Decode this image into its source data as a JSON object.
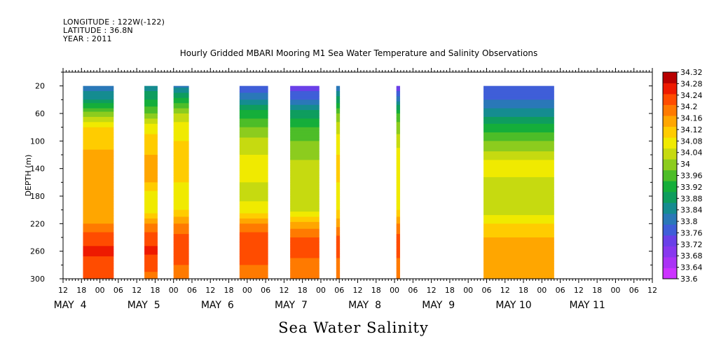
{
  "header": {
    "longitude": "LONGITUDE : 122W(-122)",
    "latitude": "LATITUDE : 36.8N",
    "year": "YEAR : 2011"
  },
  "caption": "Sea Water Salinity",
  "chart_data": {
    "type": "heatmap",
    "title": "Hourly Gridded MBARI Mooring M1 Sea Water Temperature and Salinity Observations",
    "xlabel": "",
    "ylabel": "DEPTH (m)",
    "x_hours": {
      "start": "MAY 3 12:00",
      "end": "MAY 11 12:00"
    },
    "xlim_hours": [
      0,
      192
    ],
    "ylim": [
      300,
      0
    ],
    "y_ticks": [
      20,
      60,
      100,
      140,
      180,
      220,
      260,
      300
    ],
    "x_hour_ticks": [
      "12",
      "18",
      "00",
      "06",
      "12",
      "18",
      "00",
      "06",
      "12",
      "18",
      "00",
      "06",
      "12",
      "18",
      "00",
      "06",
      "12",
      "18",
      "00",
      "06",
      "12",
      "18",
      "00",
      "06",
      "12",
      "18",
      "00",
      "06",
      "12",
      "18",
      "00",
      "06",
      "12"
    ],
    "day_labels": [
      "MAY  4",
      "MAY  5",
      "MAY  6",
      "MAY  7",
      "MAY  8",
      "MAY  9",
      "MAY 10",
      "MAY 11"
    ],
    "colorbar": {
      "levels": [
        33.6,
        33.64,
        33.68,
        33.72,
        33.76,
        33.8,
        33.84,
        33.88,
        33.92,
        33.96,
        34,
        34.04,
        34.08,
        34.12,
        34.16,
        34.2,
        34.24,
        34.28,
        34.32
      ],
      "labels": [
        "33.6",
        "33.64",
        "33.68",
        "33.72",
        "33.76",
        "33.8",
        "33.84",
        "33.88",
        "33.92",
        "33.96",
        "34",
        "34.04",
        "34.08",
        "34.12",
        "34.16",
        "34.2",
        "34.24",
        "34.28",
        "34.32"
      ],
      "colors": [
        "#cc33ff",
        "#aa33f5",
        "#8838ee",
        "#6a40e8",
        "#3f5ed8",
        "#2a78b8",
        "#158c90",
        "#0e9d5e",
        "#15ae3a",
        "#4dbd28",
        "#8ccc1e",
        "#c6da10",
        "#f0ea00",
        "#ffcc00",
        "#ffa600",
        "#ff7a00",
        "#ff4c00",
        "#ee1a00",
        "#b80000"
      ]
    },
    "depths": [
      20,
      40,
      60,
      80,
      100,
      120,
      140,
      160,
      180,
      200,
      220,
      240,
      260,
      280,
      300
    ],
    "segments": [
      {
        "x0": 6.5,
        "x1": 16.5,
        "profile": [
          33.82,
          33.88,
          34.02,
          34.12,
          34.14,
          34.17,
          34.2,
          34.19,
          34.17,
          34.17,
          34.2,
          34.26,
          34.29,
          34.26,
          34.24
        ]
      },
      {
        "x0": 26.5,
        "x1": 30.8,
        "profile": [
          33.85,
          33.92,
          34.0,
          34.1,
          34.14,
          34.16,
          34.18,
          34.16,
          34.1,
          34.1,
          34.2,
          34.26,
          34.29,
          34.25,
          34.23
        ]
      },
      {
        "x0": 36,
        "x1": 41,
        "profile": [
          33.82,
          33.94,
          34.04,
          34.1,
          34.12,
          34.15,
          34.16,
          34.12,
          34.1,
          34.12,
          34.2,
          34.25,
          34.28,
          34.24,
          34.22
        ]
      },
      {
        "x0": 57.5,
        "x1": 66.8,
        "profile": [
          33.76,
          33.84,
          33.94,
          34.0,
          34.05,
          34.08,
          34.12,
          34.08,
          34.07,
          34.1,
          34.2,
          34.26,
          34.28,
          34.24,
          34.22
        ]
      },
      {
        "x0": 74,
        "x1": 83.5,
        "profile": [
          33.74,
          33.8,
          33.9,
          33.96,
          34.0,
          34.03,
          34.06,
          34.05,
          34.04,
          34.06,
          34.17,
          34.24,
          34.26,
          34.22,
          34.2
        ]
      },
      {
        "x0": 89,
        "x1": 90.2,
        "profile": [
          33.8,
          33.9,
          34.0,
          34.06,
          34.1,
          34.12,
          34.14,
          34.12,
          34.1,
          34.12,
          34.18,
          34.25,
          34.26,
          34.22,
          34.2
        ]
      },
      {
        "x0": 108.6,
        "x1": 109.8,
        "profile": [
          33.72,
          33.82,
          33.96,
          34.02,
          34.06,
          34.1,
          34.12,
          34.1,
          34.1,
          34.12,
          34.2,
          34.25,
          34.26,
          34.22,
          34.2
        ]
      },
      {
        "x0": 137,
        "x1": 160,
        "profile": [
          33.76,
          33.8,
          33.86,
          33.94,
          34.0,
          34.05,
          34.12,
          34.06,
          34.04,
          34.06,
          34.12,
          34.16,
          34.2,
          34.18,
          34.17
        ]
      }
    ]
  }
}
